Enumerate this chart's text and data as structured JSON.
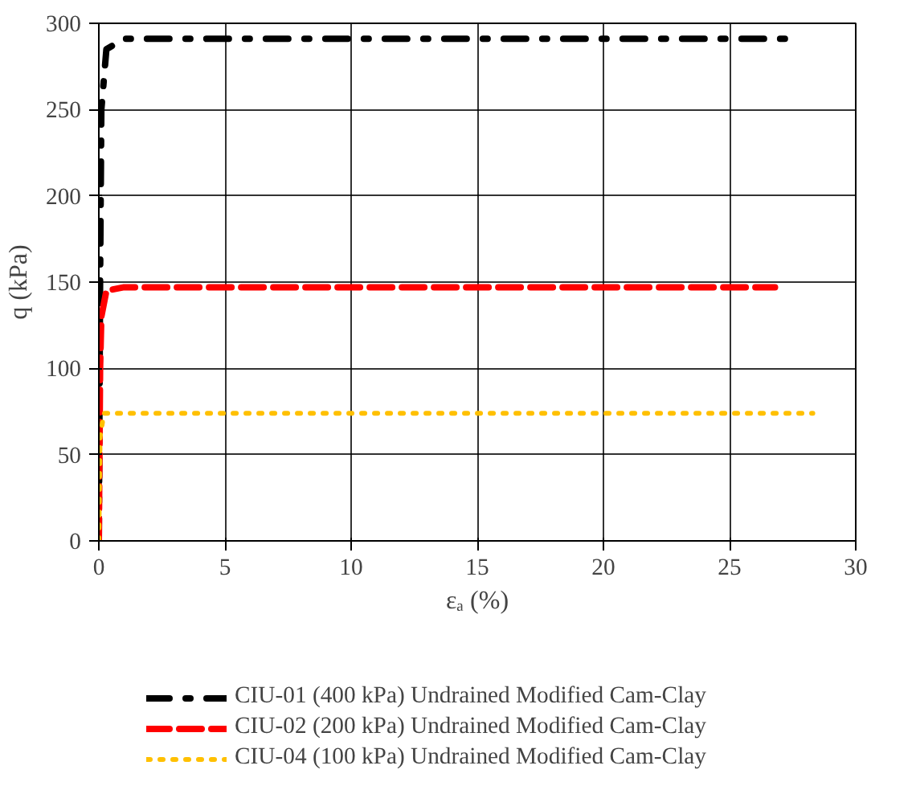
{
  "chart_data": {
    "type": "line",
    "xlabel": "εₐ (%)",
    "ylabel": "q (kPa)",
    "xlim": [
      0,
      30
    ],
    "xticks": [
      0,
      5,
      10,
      15,
      20,
      25,
      30
    ],
    "ylim": [
      0,
      300
    ],
    "yticks": [
      0,
      50,
      100,
      150,
      200,
      250,
      300
    ],
    "grid": true,
    "legend": "bottom",
    "marker": "none",
    "series": [
      {
        "name": "CIU-01 (400 kPa) Undrained Modified Cam-Clay",
        "color": "#000000",
        "line_style": "dashdot",
        "x": [
          0,
          0.05,
          0.1,
          0.3,
          1,
          27.3
        ],
        "values": [
          0,
          150,
          250,
          285,
          291,
          291
        ]
      },
      {
        "name": "CIU-02 (200 kPa) Undrained Modified Cam-Clay",
        "color": "#ff0000",
        "line_style": "dashed",
        "x": [
          0,
          0.05,
          0.1,
          0.3,
          1,
          26.8
        ],
        "values": [
          0,
          100,
          130,
          145,
          147,
          147
        ]
      },
      {
        "name": "CIU-04 (100 kPa) Undrained Modified Cam-Clay",
        "color": "#ffc000",
        "line_style": "dotted",
        "x": [
          0,
          0.05,
          0.2,
          28.3
        ],
        "values": [
          0,
          60,
          74,
          74
        ]
      }
    ]
  }
}
